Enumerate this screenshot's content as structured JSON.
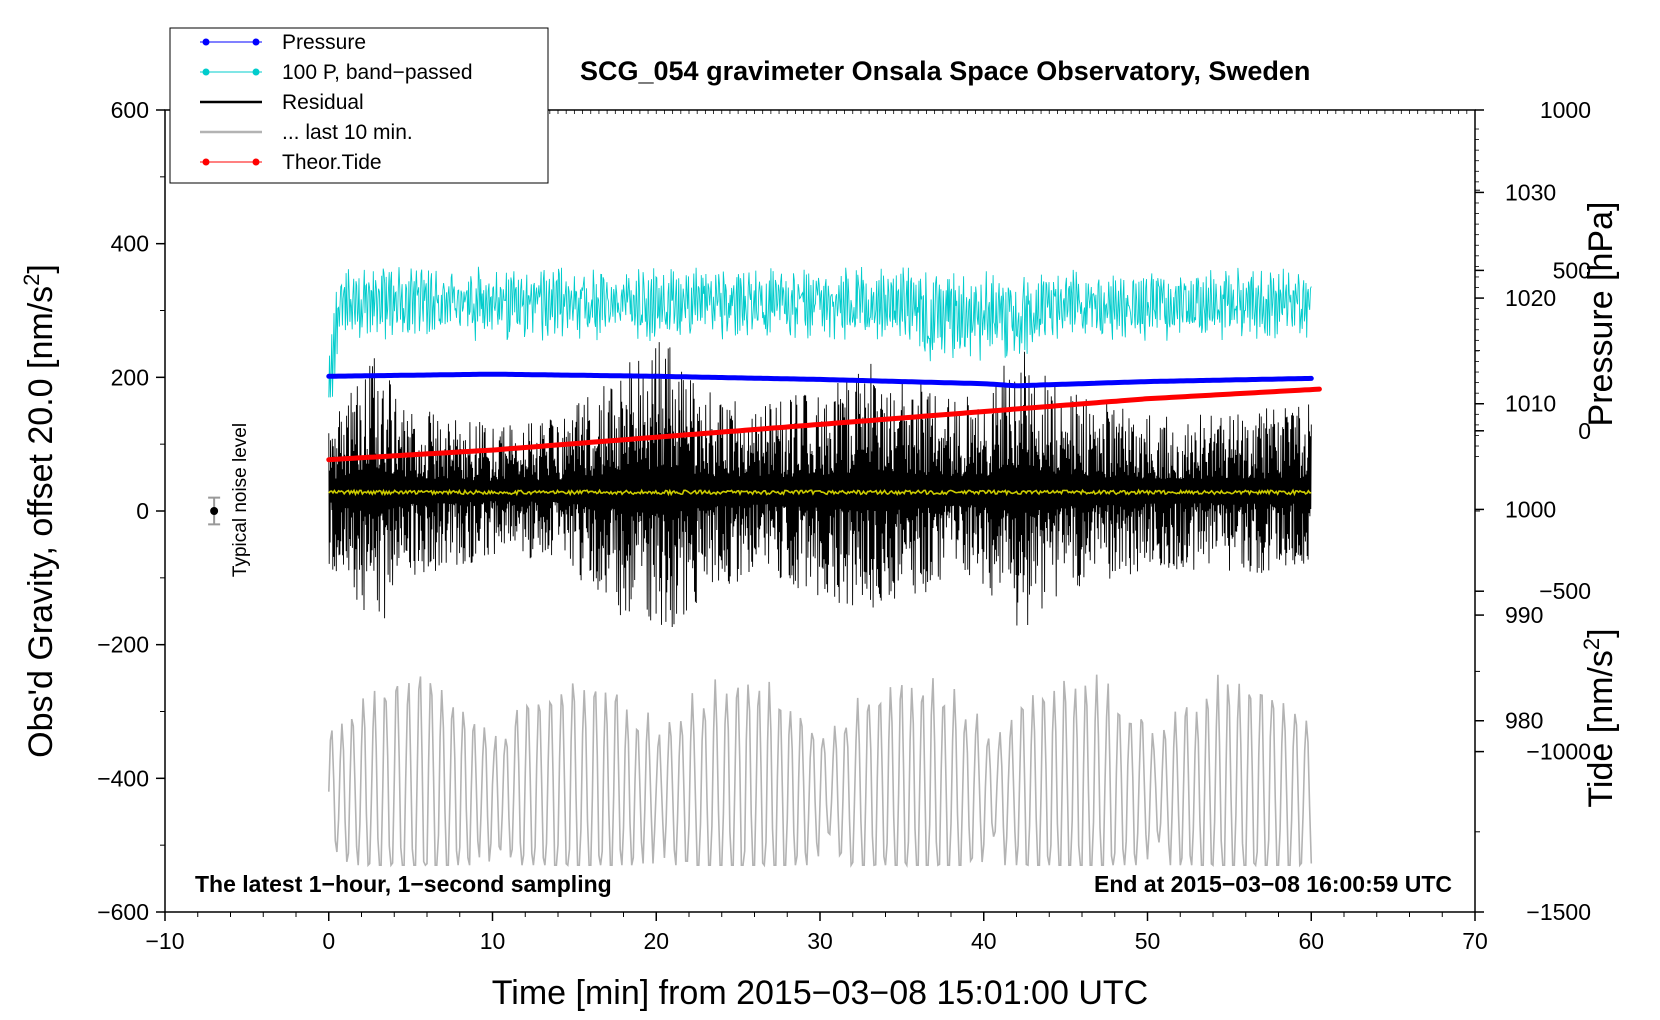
{
  "chart_data": {
    "type": "line",
    "title": "SCG_054 gravimeter Onsala Space Observatory, Sweden",
    "xlabel": "Time [min] from 2015−03−08 15:01:00 UTC",
    "ylabel_left_main": "Obs'd Gravity, offset 20.0 [nm/s",
    "ylabel_left_sup": "2",
    "ylabel_left_close": "]",
    "ylabel_right_pressure": "Pressure [hPa]",
    "ylabel_right_tide_main": "Tide [nm/s",
    "ylabel_right_tide_sup": "2",
    "ylabel_right_tide_close": "]",
    "xlim": [
      -10,
      70
    ],
    "ylim_left": [
      -600,
      600
    ],
    "ylim_pressure": [
      961.9,
      1037.8
    ],
    "ylim_tide": [
      -1500,
      1000
    ],
    "xticks": [
      -10,
      0,
      10,
      20,
      30,
      40,
      50,
      60,
      70
    ],
    "xtick_labels": [
      "−10",
      "0",
      "10",
      "20",
      "30",
      "40",
      "50",
      "60",
      "70"
    ],
    "yticks_left": [
      600,
      400,
      200,
      0,
      -200,
      -400,
      -600
    ],
    "ytick_labels_left": [
      "600",
      "400",
      "200",
      "0",
      "−200",
      "−400",
      "−600"
    ],
    "yticks_pressure": [
      1030,
      1020,
      1010,
      1000,
      990,
      980
    ],
    "ytick_labels_pressure": [
      "1030",
      "1020",
      "1010",
      "1000",
      "990",
      "980"
    ],
    "yticks_tide": [
      1000,
      500,
      0,
      -500,
      -1000,
      -1500
    ],
    "ytick_labels_tide": [
      "1000",
      "500",
      "0",
      "−500",
      "−1000",
      "−1500"
    ],
    "annotation_left": "The latest 1−hour, 1−second sampling",
    "annotation_right": "End at 2015−03−08 16:00:59 UTC",
    "noise_label": "Typical noise level",
    "noise_marker": {
      "x": -7,
      "y": 0,
      "yerr": 20
    },
    "legend_position": "top-left",
    "legend": [
      {
        "label": "Pressure",
        "color": "#0000ff",
        "marker": true
      },
      {
        "label": "100 P, band−passed",
        "color": "#00cccc",
        "marker": true
      },
      {
        "label": "Residual",
        "color": "#000000",
        "marker": false
      },
      {
        "label": "... last 10 min.",
        "color": "#b3b3b3",
        "marker": false
      },
      {
        "label": "Theor.Tide",
        "color": "#ff0000",
        "marker": true
      }
    ],
    "series": [
      {
        "name": "Pressure",
        "axis": "pressure",
        "color": "#0000ff",
        "x": [
          0,
          10,
          20,
          30,
          40,
          42,
          50,
          60
        ],
        "values": [
          1012.6,
          1012.8,
          1012.6,
          1012.3,
          1011.9,
          1011.7,
          1012.1,
          1012.4
        ]
      },
      {
        "name": "100 P, band-passed",
        "axis": "left",
        "color": "#00cccc",
        "x_start": 0,
        "x_end": 60,
        "mean": 310,
        "amplitude": 40,
        "min": 170,
        "max": 390
      },
      {
        "name": "Residual",
        "axis": "left",
        "color": "#000000",
        "x_start": 0,
        "x_end": 60,
        "mean": 30,
        "envelope_x": [
          0,
          3,
          5,
          10,
          14,
          18,
          20.5,
          23,
          27,
          30,
          34,
          37,
          40,
          42,
          45,
          50,
          55,
          60
        ],
        "envelope_amp": [
          110,
          210,
          130,
          100,
          110,
          190,
          230,
          150,
          130,
          160,
          200,
          150,
          140,
          220,
          150,
          120,
          120,
          130
        ]
      },
      {
        "name": "Smoothed residual",
        "axis": "left",
        "color": "#cccc00",
        "x_start": 0,
        "x_end": 60,
        "mean": 28
      },
      {
        "name": "... last 10 min.",
        "axis": "left",
        "color": "#b3b3b3",
        "x_start": 0,
        "x_end": 60,
        "mean": -420,
        "min": -530,
        "max": -190
      },
      {
        "name": "Theor.Tide",
        "axis": "tide",
        "color": "#ff0000",
        "x": [
          0,
          10,
          20,
          30,
          40,
          50,
          60.5
        ],
        "values": [
          -90,
          -60,
          -20,
          20,
          60,
          100,
          130
        ]
      }
    ]
  }
}
